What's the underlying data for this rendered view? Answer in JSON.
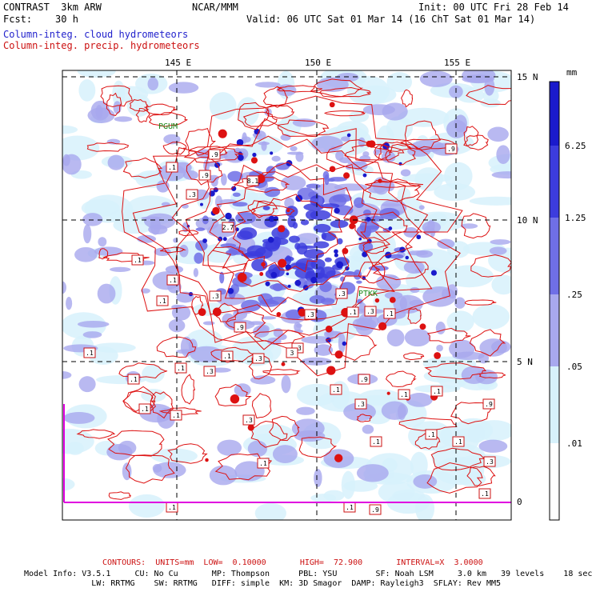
{
  "header": {
    "model": "CONTRAST  3km ARW",
    "org": "NCAR/MMM",
    "init": "Init: 00 UTC Fri 28 Feb 14",
    "fcst": "Fcst:    30 h",
    "valid": "Valid: 06 UTC Sat 01 Mar 14 (16 ChT Sat 01 Mar 14)",
    "field1": "Column-integ. cloud hydrometeors",
    "field2": "Column-integ. precip. hydrometeors"
  },
  "axes": {
    "lon_labels": [
      "145 E",
      "150 E",
      "155 E"
    ],
    "lat_labels": [
      "15 N",
      "10 N",
      "5 N",
      "0"
    ]
  },
  "colorbar": {
    "unit": "mm",
    "levels": [
      "6.25",
      "1.25",
      ".25",
      ".05",
      ".01"
    ],
    "colors": [
      "#1a1acc",
      "#3c3cdd",
      "#6f6fe6",
      "#a8a8ee",
      "#d7f1fb",
      "#ffffff"
    ]
  },
  "stations": [
    "PGUM",
    "PTKK"
  ],
  "contour_labels": [
    ".1",
    ".3",
    ".9",
    "2.7",
    "8.1",
    "3"
  ],
  "footer": {
    "contours": "CONTOURS:  UNITS=mm  LOW=  0.10000       HIGH=  72.900       INTERVAL=X  3.0000",
    "line1": "Model Info: V3.5.1     CU: No Cu       MP: Thompson      PBL: YSU        SF: Noah LSM     3.0 km   39 levels    18 sec",
    "line2": "              LW: RRTMG    SW: RRTMG   DIFF: simple  KM: 3D Smagor  DAMP: Rayleigh3  SFLAY: Rev MM5"
  }
}
